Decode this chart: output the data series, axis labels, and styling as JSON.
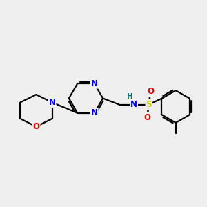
{
  "bg_color": "#efefef",
  "bond_color": "#000000",
  "bond_width": 1.6,
  "atom_colors": {
    "N": "#0000ee",
    "O": "#ee0000",
    "S": "#cccc00",
    "H": "#007070",
    "C": "#000000"
  },
  "font_size_atom": 8.5,
  "font_size_h": 7.5
}
